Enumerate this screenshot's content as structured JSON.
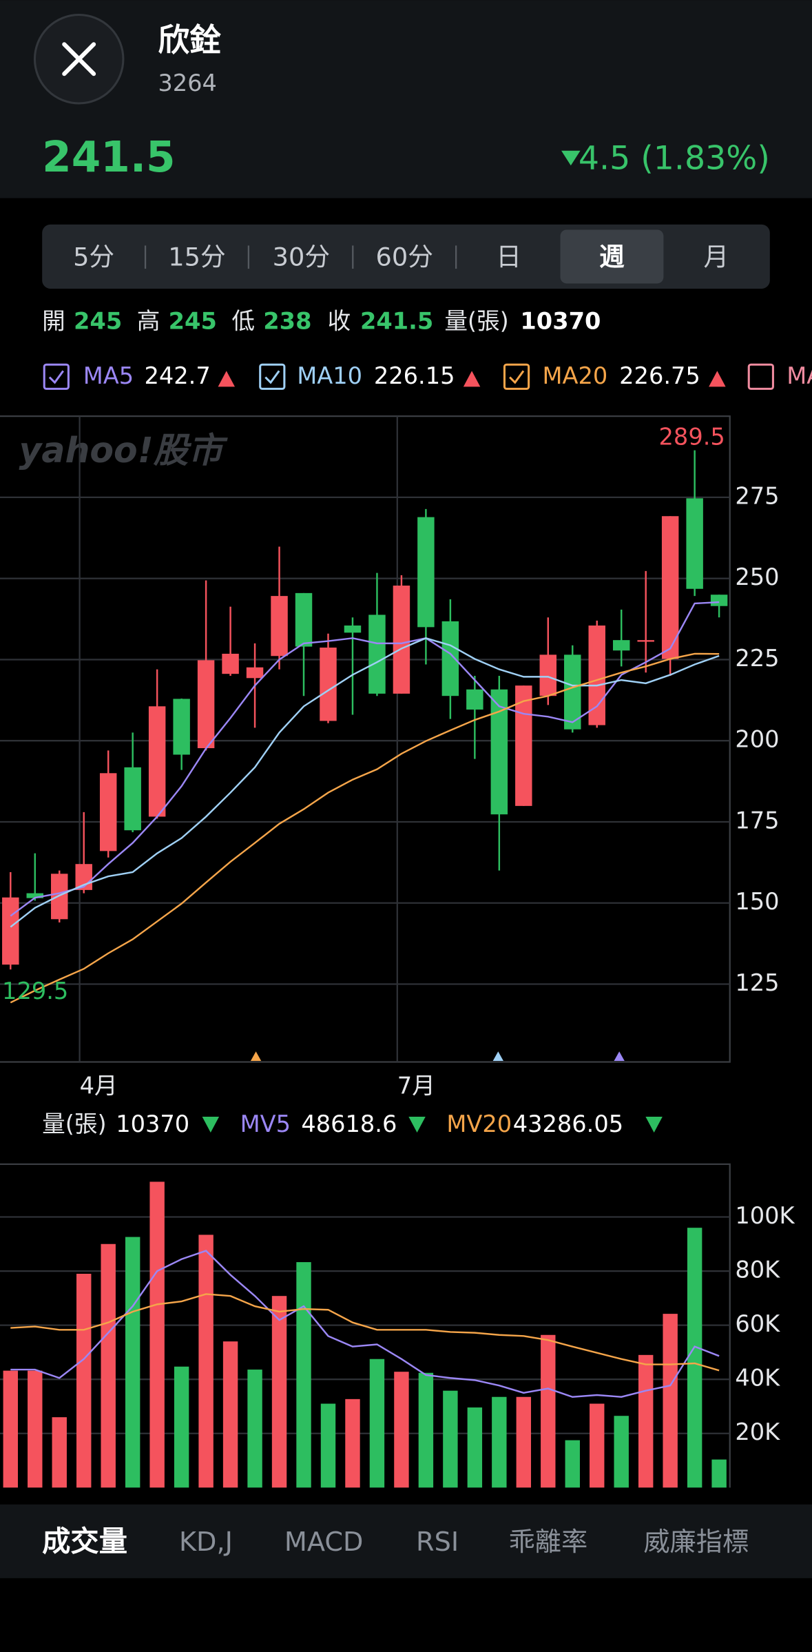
{
  "header": {
    "name": "欣銓",
    "code": "3264",
    "price": "241.5",
    "change": "4.5 (1.83%)"
  },
  "tabs": [
    "5分",
    "15分",
    "30分",
    "60分",
    "日",
    "週",
    "月"
  ],
  "selected_tab_index": 5,
  "stats_labels": [
    "開",
    "高",
    "低",
    "收",
    "量(張)"
  ],
  "legend_overflow": "MA",
  "watermark": "yahoo!股市",
  "volume_label": "量(張)",
  "indicator_tabs": [
    "成交量",
    "KD,J",
    "MACD",
    "RSI",
    "乖離率",
    "威廉指標"
  ],
  "selected_indicator_index": 0,
  "chart_data": [
    {
      "type": "candlestick",
      "categories": [
        null,
        null,
        null,
        "4月",
        null,
        null,
        null,
        null,
        null,
        null,
        null,
        null,
        null,
        null,
        null,
        null,
        "7月",
        null,
        null,
        null,
        null,
        null,
        null,
        null,
        null,
        null,
        null,
        null,
        null,
        null
      ],
      "open": [
        131,
        153,
        145,
        154,
        166,
        191.8,
        176.6,
        212.9,
        197.7,
        220.6,
        219.3,
        226.1,
        245.5,
        206.1,
        235.5,
        238.8,
        214.5,
        268.9,
        236.8,
        215.8,
        215.8,
        179.9,
        213.8,
        226.5,
        204.8,
        231,
        230.5,
        225.2,
        274.7,
        245
      ],
      "high": [
        159.5,
        165.3,
        160,
        178,
        197,
        202.5,
        222,
        213,
        249.4,
        241.3,
        230,
        259.8,
        245.5,
        233,
        238,
        251.7,
        251,
        271.4,
        243.6,
        220,
        220,
        217,
        238,
        229.4,
        237,
        240.4,
        252.3,
        269.2,
        289.5,
        245
      ],
      "low": [
        129.5,
        150.7,
        144,
        153,
        164,
        171.8,
        176,
        191,
        197,
        220,
        204,
        222,
        213.8,
        205.4,
        208,
        213.8,
        214.5,
        223.5,
        206.7,
        194.4,
        160,
        179.9,
        211,
        202.5,
        204,
        222.9,
        221,
        220,
        244.6,
        238
      ],
      "close": [
        151.7,
        151.5,
        159,
        162,
        190,
        172.4,
        210.6,
        195.7,
        224.8,
        226.8,
        222.6,
        244.6,
        229,
        228.7,
        233.3,
        214.5,
        247.8,
        235,
        213.8,
        209.6,
        177.3,
        217,
        226.5,
        203.5,
        235.5,
        227.8,
        231,
        269.2,
        246.8,
        241.5
      ],
      "up_color": "#f5535d",
      "down_color": "#2dbe60",
      "series": [
        {
          "name": "MA5",
          "color": "#9b87f5",
          "values": [
            146,
            151.6,
            153,
            155,
            162,
            168.5,
            176.6,
            186,
            197.6,
            207,
            217,
            225,
            230,
            230.7,
            231.6,
            230,
            230,
            231.6,
            226.8,
            218.7,
            210.6,
            208.3,
            207.4,
            205.7,
            210.6,
            220.3,
            224.2,
            228.4,
            242.3,
            242.7
          ]
        },
        {
          "name": "MA10",
          "color": "#9fd0f5",
          "values": [
            142.6,
            148.5,
            152.3,
            155.6,
            158.2,
            159.5,
            165.3,
            170,
            176.6,
            184,
            191.8,
            202.5,
            210.6,
            215.5,
            220.3,
            224.2,
            228.4,
            231.6,
            229.4,
            225.2,
            222,
            219.7,
            219.7,
            217,
            217,
            218.7,
            217.7,
            220.3,
            223.5,
            226.15
          ]
        },
        {
          "name": "MA20",
          "color": "#f5a54a",
          "values": [
            119.3,
            123,
            126.4,
            129.7,
            134.5,
            138.8,
            144.3,
            149.8,
            156.3,
            162.7,
            168.5,
            174.4,
            178.9,
            184,
            188,
            191.2,
            196,
            199.9,
            203.2,
            206.4,
            209,
            212.2,
            213.8,
            216.4,
            218.7,
            221,
            222.9,
            225.2,
            226.8,
            226.75
          ]
        }
      ],
      "ylim": [
        101,
        300
      ],
      "yticks": [
        125,
        150,
        175,
        200,
        225,
        250,
        275
      ],
      "grid": true
    },
    {
      "type": "bar",
      "values": [
        43200,
        43200,
        26000,
        79000,
        90000,
        92600,
        113000,
        44700,
        93400,
        54000,
        43600,
        70800,
        83300,
        31000,
        32700,
        47500,
        42800,
        42400,
        35800,
        29600,
        33500,
        33500,
        56400,
        17500,
        31000,
        26500,
        49000,
        64200,
        96000,
        10370
      ],
      "colors": [
        "#f5535d",
        "#f5535d",
        "#f5535d",
        "#f5535d",
        "#f5535d",
        "#2dbe60",
        "#f5535d",
        "#2dbe60",
        "#f5535d",
        "#f5535d",
        "#2dbe60",
        "#f5535d",
        "#2dbe60",
        "#2dbe60",
        "#f5535d",
        "#2dbe60",
        "#f5535d",
        "#2dbe60",
        "#2dbe60",
        "#2dbe60",
        "#2dbe60",
        "#f5535d",
        "#f5535d",
        "#2dbe60",
        "#f5535d",
        "#2dbe60",
        "#f5535d",
        "#f5535d",
        "#2dbe60",
        "#2dbe60"
      ],
      "series": [
        {
          "name": "MV5",
          "color": "#9b87f5",
          "values": [
            43600,
            43600,
            40500,
            47500,
            57200,
            67000,
            80000,
            84400,
            87500,
            78600,
            70800,
            61900,
            67000,
            56000,
            52100,
            52900,
            47500,
            41600,
            40500,
            39700,
            37700,
            35000,
            36600,
            33500,
            34200,
            33500,
            35800,
            37700,
            52100,
            48618.6
          ]
        },
        {
          "name": "MV20",
          "color": "#f5a54a",
          "values": [
            59000,
            59500,
            58300,
            58300,
            61000,
            65000,
            67700,
            68800,
            71500,
            70800,
            67000,
            65000,
            66000,
            65700,
            61000,
            58300,
            58300,
            58300,
            57500,
            57200,
            56400,
            56000,
            54500,
            52100,
            49800,
            47500,
            45500,
            45500,
            45900,
            43286.05
          ]
        }
      ],
      "ylim": [
        0,
        119500
      ],
      "yticks": [
        {
          "value": 20000,
          "label": "20K"
        },
        {
          "value": 40000,
          "label": "40K"
        },
        {
          "value": 60000,
          "label": "60K"
        },
        {
          "value": 80000,
          "label": "80K"
        },
        {
          "value": 100000,
          "label": "100K"
        }
      ],
      "grid": true
    }
  ]
}
